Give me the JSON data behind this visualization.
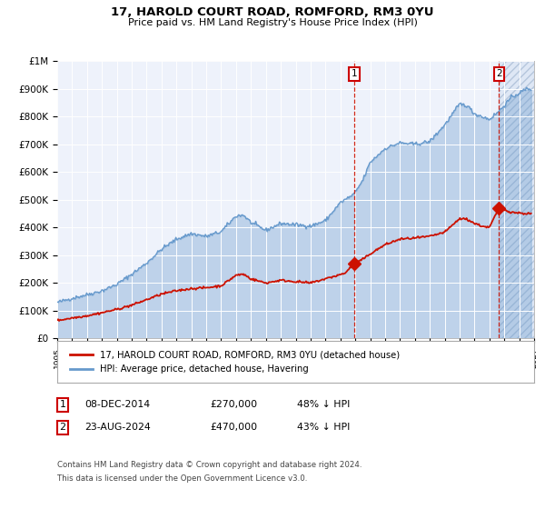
{
  "title": "17, HAROLD COURT ROAD, ROMFORD, RM3 0YU",
  "subtitle": "Price paid vs. HM Land Registry's House Price Index (HPI)",
  "ylabel_ticks": [
    "£0",
    "£100K",
    "£200K",
    "£300K",
    "£400K",
    "£500K",
    "£600K",
    "£700K",
    "£800K",
    "£900K",
    "£1M"
  ],
  "ytick_values": [
    0,
    100000,
    200000,
    300000,
    400000,
    500000,
    600000,
    700000,
    800000,
    900000,
    1000000
  ],
  "ylim": [
    0,
    1000000
  ],
  "xlim_start": 1995,
  "xlim_end": 2027,
  "hpi_color": "#6699cc",
  "price_color": "#cc1100",
  "bg_color": "#eef2fb",
  "grid_color": "#ffffff",
  "sale1_date": 2014.92,
  "sale1_price": 270000,
  "sale2_date": 2024.65,
  "sale2_price": 470000,
  "legend_line1": "17, HAROLD COURT ROAD, ROMFORD, RM3 0YU (detached house)",
  "legend_line2": "HPI: Average price, detached house, Havering",
  "table_row1": [
    "1",
    "08-DEC-2014",
    "£270,000",
    "48% ↓ HPI"
  ],
  "table_row2": [
    "2",
    "23-AUG-2024",
    "£470,000",
    "43% ↓ HPI"
  ],
  "footnote1": "Contains HM Land Registry data © Crown copyright and database right 2024.",
  "footnote2": "This data is licensed under the Open Government Licence v3.0.",
  "hatch_start": 2024.65,
  "hatch_end": 2027.0
}
